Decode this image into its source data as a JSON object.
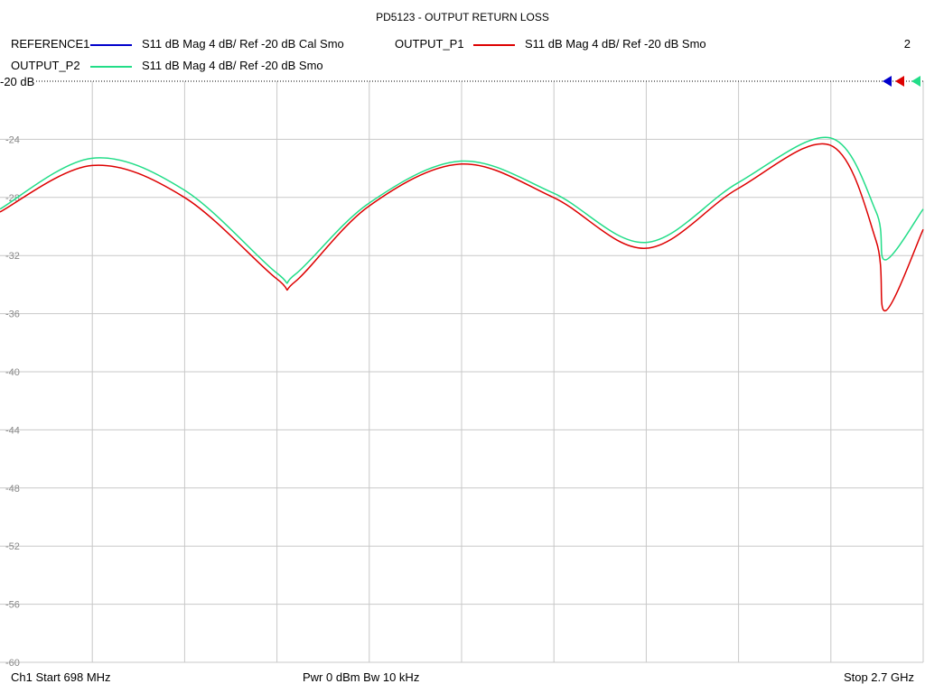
{
  "title": "PD5123 - OUTPUT RETURN LOSS",
  "page_number": "2",
  "reference_label": "-20 dB",
  "legend": [
    {
      "name": "REFERENCE1",
      "desc": "S11  dB Mag  4 dB/ Ref -20 dB  Cal Smo",
      "color": "#0000cc"
    },
    {
      "name": "OUTPUT_P1",
      "desc": "S11  dB Mag  4 dB/ Ref -20 dB  Smo",
      "color": "#dd0000"
    },
    {
      "name": "OUTPUT_P2",
      "desc": "S11  dB Mag  4 dB/ Ref -20 dB  Smo",
      "color": "#22dd88"
    }
  ],
  "footer": {
    "left": "Ch1  Start  698 MHz",
    "middle": "Pwr  0 dBm  Bw  10 kHz",
    "right": "Stop  2.7 GHz"
  },
  "chart_data": {
    "type": "line",
    "title": "PD5123 - OUTPUT RETURN LOSS",
    "xlabel": "",
    "ylabel": "",
    "x_start_mhz": 698,
    "x_stop_mhz": 2700,
    "x_divisions": 10,
    "ylim": [
      -60,
      -20
    ],
    "y_ticks": [
      "-24",
      "-28",
      "-32",
      "-36",
      "-40",
      "-44",
      "-48",
      "-52",
      "-56",
      "-60"
    ],
    "grid": true,
    "x": [
      698,
      898,
      1098,
      1298,
      1338,
      1498,
      1698,
      1898,
      2098,
      2298,
      2498,
      2598,
      2618,
      2700
    ],
    "series": [
      {
        "name": "OUTPUT_P1",
        "color": "#dd0000",
        "values": [
          -29.0,
          -25.8,
          -28.0,
          -33.6,
          -33.8,
          -28.6,
          -25.7,
          -28.0,
          -31.5,
          -27.4,
          -24.4,
          -31.0,
          -35.8,
          -30.2
        ]
      },
      {
        "name": "OUTPUT_P2",
        "color": "#22dd88",
        "values": [
          -28.8,
          -25.3,
          -27.5,
          -33.2,
          -33.3,
          -28.4,
          -25.5,
          -27.7,
          -31.1,
          -27.0,
          -23.9,
          -29.0,
          -32.3,
          -28.8
        ]
      }
    ]
  }
}
